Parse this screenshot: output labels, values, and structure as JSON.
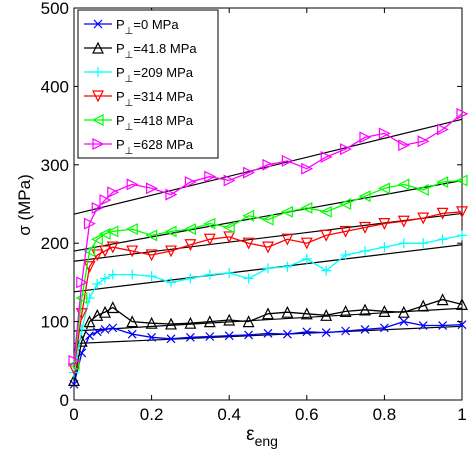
{
  "chart_data": {
    "type": "line",
    "xlabel": "ε",
    "xlabel_sub": "eng",
    "ylabel": "σ (MPa)",
    "xlim": [
      0,
      1
    ],
    "ylim": [
      0,
      500
    ],
    "xticks": [
      "0",
      "0.2",
      "0.4",
      "0.6",
      "0.8",
      "1"
    ],
    "yticks": [
      "0",
      "100",
      "200",
      "300",
      "400",
      "500"
    ],
    "grid": false,
    "legend_position": "top-left",
    "legend_prefix": "P",
    "legend_sub": "⊥",
    "series": [
      {
        "name": "=0 MPa",
        "color": "#0000ff",
        "marker": "x",
        "x": [
          0,
          0.02,
          0.04,
          0.06,
          0.08,
          0.1,
          0.15,
          0.2,
          0.25,
          0.3,
          0.35,
          0.4,
          0.45,
          0.5,
          0.55,
          0.6,
          0.65,
          0.7,
          0.75,
          0.8,
          0.85,
          0.9,
          0.95,
          1.0
        ],
        "y": [
          20,
          60,
          82,
          87,
          90,
          92,
          84,
          80,
          78,
          80,
          81,
          82,
          83,
          85,
          84,
          87,
          86,
          88,
          90,
          92,
          100,
          95,
          95,
          96
        ],
        "fit": [
          72,
          94
        ]
      },
      {
        "name": "=41.8 MPa",
        "color": "#000000",
        "marker": "triangle-up",
        "x": [
          0,
          0.02,
          0.04,
          0.06,
          0.08,
          0.1,
          0.15,
          0.2,
          0.25,
          0.3,
          0.35,
          0.4,
          0.45,
          0.5,
          0.55,
          0.6,
          0.65,
          0.7,
          0.75,
          0.8,
          0.85,
          0.9,
          0.95,
          1.0
        ],
        "y": [
          25,
          75,
          100,
          108,
          112,
          118,
          100,
          98,
          97,
          98,
          100,
          102,
          100,
          110,
          112,
          110,
          108,
          113,
          115,
          113,
          112,
          120,
          128,
          122
        ],
        "fit": [
          88,
          117
        ]
      },
      {
        "name": "=209 MPa",
        "color": "#00ffff",
        "marker": "plus",
        "x": [
          0,
          0.02,
          0.04,
          0.06,
          0.08,
          0.1,
          0.15,
          0.2,
          0.25,
          0.3,
          0.35,
          0.4,
          0.45,
          0.5,
          0.55,
          0.6,
          0.65,
          0.7,
          0.75,
          0.8,
          0.85,
          0.9,
          0.95,
          1.0
        ],
        "y": [
          35,
          90,
          130,
          148,
          155,
          160,
          160,
          158,
          150,
          155,
          160,
          162,
          155,
          168,
          170,
          180,
          165,
          185,
          190,
          195,
          200,
          200,
          205,
          210
        ],
        "fit": [
          138,
          198
        ]
      },
      {
        "name": "=314 MPa",
        "color": "#ff0000",
        "marker": "triangle-down",
        "x": [
          0,
          0.02,
          0.04,
          0.06,
          0.08,
          0.1,
          0.15,
          0.2,
          0.25,
          0.3,
          0.35,
          0.4,
          0.45,
          0.5,
          0.55,
          0.6,
          0.65,
          0.7,
          0.75,
          0.8,
          0.85,
          0.9,
          0.95,
          1.0
        ],
        "y": [
          40,
          110,
          170,
          185,
          190,
          195,
          190,
          185,
          190,
          198,
          205,
          208,
          200,
          195,
          205,
          200,
          210,
          215,
          220,
          225,
          228,
          232,
          238,
          240
        ],
        "fit": [
          177,
          238
        ]
      },
      {
        "name": "=418 MPa",
        "color": "#00ff00",
        "marker": "triangle-left",
        "x": [
          0,
          0.02,
          0.04,
          0.06,
          0.08,
          0.1,
          0.15,
          0.2,
          0.25,
          0.3,
          0.35,
          0.4,
          0.45,
          0.5,
          0.55,
          0.6,
          0.65,
          0.7,
          0.75,
          0.8,
          0.85,
          0.9,
          0.95,
          1.0
        ],
        "y": [
          45,
          130,
          190,
          205,
          212,
          215,
          218,
          210,
          215,
          218,
          225,
          220,
          235,
          230,
          240,
          245,
          240,
          250,
          260,
          270,
          275,
          268,
          278,
          280
        ],
        "fit": [
          190,
          280
        ]
      },
      {
        "name": "=628 MPa",
        "color": "#ff00ff",
        "marker": "triangle-right",
        "x": [
          0,
          0.02,
          0.04,
          0.06,
          0.08,
          0.1,
          0.15,
          0.2,
          0.25,
          0.3,
          0.35,
          0.4,
          0.45,
          0.5,
          0.55,
          0.6,
          0.65,
          0.7,
          0.75,
          0.8,
          0.85,
          0.9,
          0.95,
          1.0
        ],
        "y": [
          50,
          150,
          225,
          245,
          255,
          265,
          275,
          270,
          262,
          278,
          285,
          280,
          290,
          300,
          305,
          295,
          310,
          320,
          335,
          340,
          325,
          330,
          345,
          365
        ],
        "fit": [
          237,
          358
        ]
      }
    ]
  }
}
